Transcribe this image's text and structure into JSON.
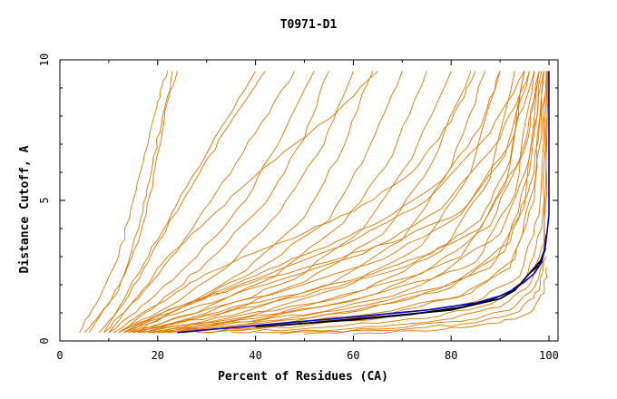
{
  "chart_data": {
    "type": "line",
    "title": "T0971-D1",
    "xlabel": "Percent of Residues (CA)",
    "ylabel": "Distance Cutoff, A",
    "xlim": [
      0,
      100
    ],
    "ylim": [
      0,
      10
    ],
    "xticks": [
      "0",
      "20",
      "40",
      "60",
      "80",
      "100"
    ],
    "yticks": [
      "0",
      "5",
      "10"
    ],
    "grid": false,
    "colors": {
      "models": "#e07800",
      "reference": "#000000",
      "highlight": "#0000cc"
    },
    "series": [
      {
        "role": "highlight",
        "color": "#0000cc",
        "x": [
          24,
          40,
          60,
          75,
          85,
          90,
          93,
          95,
          97,
          98.5,
          99.3,
          99.7,
          100,
          100,
          100
        ],
        "y": [
          0.3,
          0.55,
          0.85,
          1.1,
          1.35,
          1.6,
          1.85,
          2.1,
          2.4,
          2.8,
          3.4,
          4.0,
          4.5,
          7.0,
          9.6
        ]
      },
      {
        "role": "reference",
        "color": "#000000",
        "x": [
          40,
          60,
          72,
          82,
          88,
          92,
          94,
          96,
          98,
          99,
          99.5
        ],
        "y": [
          0.5,
          0.75,
          0.95,
          1.2,
          1.45,
          1.75,
          2.0,
          2.4,
          2.7,
          3.2,
          3.8
        ]
      },
      {
        "role": "reference",
        "color": "#000000",
        "x": [
          45,
          65,
          80,
          90,
          93,
          95,
          97,
          98.5,
          99.3
        ],
        "y": [
          0.55,
          0.85,
          1.1,
          1.5,
          1.8,
          2.2,
          2.6,
          2.9,
          3.3
        ]
      },
      {
        "role": "model",
        "x": [
          4,
          8,
          12,
          15,
          18,
          20,
          22
        ],
        "y": [
          0.3,
          1.5,
          3.0,
          5.0,
          7.0,
          8.5,
          9.6
        ]
      },
      {
        "role": "model",
        "x": [
          5,
          10,
          14,
          17,
          19,
          21,
          24
        ],
        "y": [
          0.3,
          1.3,
          2.8,
          4.6,
          6.3,
          8.0,
          9.6
        ]
      },
      {
        "role": "model",
        "x": [
          6,
          12,
          16,
          19,
          21,
          23
        ],
        "y": [
          0.3,
          1.8,
          3.5,
          5.5,
          7.5,
          9.6
        ]
      },
      {
        "role": "model",
        "x": [
          8,
          14,
          20,
          28,
          35,
          42
        ],
        "y": [
          0.3,
          1.6,
          3.5,
          5.8,
          7.8,
          9.6
        ]
      },
      {
        "role": "model",
        "x": [
          9,
          16,
          24,
          32,
          40,
          48
        ],
        "y": [
          0.3,
          1.5,
          3.2,
          5.3,
          7.4,
          9.6
        ]
      },
      {
        "role": "model",
        "x": [
          10,
          18,
          28,
          38,
          46,
          52
        ],
        "y": [
          0.3,
          1.4,
          3.0,
          5.0,
          7.5,
          9.6
        ]
      },
      {
        "role": "model",
        "x": [
          11,
          20,
          30,
          42,
          50,
          55
        ],
        "y": [
          0.3,
          1.3,
          2.8,
          4.9,
          7.2,
          9.6
        ]
      },
      {
        "role": "model",
        "x": [
          12,
          22,
          34,
          45,
          54,
          60
        ],
        "y": [
          0.3,
          1.2,
          2.6,
          4.6,
          7.0,
          9.6
        ]
      },
      {
        "role": "model",
        "x": [
          13,
          24,
          38,
          50,
          58,
          64
        ],
        "y": [
          0.3,
          1.1,
          2.5,
          4.4,
          6.9,
          9.6
        ]
      },
      {
        "role": "model",
        "x": [
          12,
          25,
          40,
          55,
          63,
          70
        ],
        "y": [
          0.3,
          1.2,
          2.5,
          4.3,
          6.8,
          9.6
        ]
      },
      {
        "role": "model",
        "x": [
          14,
          28,
          44,
          58,
          68,
          75
        ],
        "y": [
          0.3,
          1.0,
          2.3,
          4.2,
          6.6,
          9.6
        ]
      },
      {
        "role": "model",
        "x": [
          15,
          30,
          48,
          62,
          72,
          80
        ],
        "y": [
          0.3,
          1.0,
          2.2,
          4.0,
          6.5,
          9.6
        ]
      },
      {
        "role": "model",
        "x": [
          16,
          32,
          50,
          66,
          76,
          84
        ],
        "y": [
          0.3,
          0.9,
          2.1,
          3.8,
          6.3,
          9.6
        ]
      },
      {
        "role": "model",
        "x": [
          17,
          35,
          55,
          70,
          80,
          87
        ],
        "y": [
          0.3,
          0.9,
          2.0,
          3.6,
          6.2,
          9.6
        ]
      },
      {
        "role": "model",
        "x": [
          18,
          38,
          58,
          74,
          84,
          90
        ],
        "y": [
          0.3,
          0.85,
          1.9,
          3.4,
          6.0,
          9.6
        ]
      },
      {
        "role": "model",
        "x": [
          19,
          40,
          62,
          78,
          88,
          93
        ],
        "y": [
          0.3,
          0.8,
          1.8,
          3.2,
          5.8,
          9.6
        ]
      },
      {
        "role": "model",
        "x": [
          20,
          42,
          65,
          82,
          91,
          95
        ],
        "y": [
          0.3,
          0.8,
          1.7,
          3.0,
          5.5,
          9.6
        ]
      },
      {
        "role": "model",
        "x": [
          21,
          45,
          68,
          85,
          93,
          97
        ],
        "y": [
          0.3,
          0.75,
          1.6,
          2.8,
          5.2,
          9.6
        ]
      },
      {
        "role": "model",
        "x": [
          22,
          48,
          72,
          88,
          95,
          98
        ],
        "y": [
          0.3,
          0.7,
          1.5,
          2.6,
          4.8,
          9.6
        ]
      },
      {
        "role": "model",
        "x": [
          20,
          40,
          60,
          80,
          92,
          97,
          99
        ],
        "y": [
          0.3,
          0.7,
          1.2,
          2.0,
          3.5,
          6.0,
          9.6
        ]
      },
      {
        "role": "model",
        "x": [
          18,
          36,
          56,
          76,
          90,
          96,
          99
        ],
        "y": [
          0.3,
          0.75,
          1.3,
          2.2,
          3.8,
          6.5,
          9.6
        ]
      },
      {
        "role": "model",
        "x": [
          15,
          30,
          50,
          70,
          86,
          95,
          98
        ],
        "y": [
          0.3,
          0.9,
          1.6,
          2.6,
          4.0,
          6.8,
          9.6
        ]
      },
      {
        "role": "model",
        "x": [
          14,
          28,
          46,
          66,
          82,
          92,
          97
        ],
        "y": [
          0.3,
          1.0,
          1.8,
          2.9,
          4.5,
          7.0,
          9.6
        ]
      },
      {
        "role": "model",
        "x": [
          13,
          26,
          42,
          62,
          78,
          90,
          96
        ],
        "y": [
          0.3,
          1.1,
          2.0,
          3.1,
          4.7,
          7.2,
          9.6
        ]
      },
      {
        "role": "model",
        "x": [
          12,
          24,
          40,
          58,
          75,
          88,
          95
        ],
        "y": [
          0.3,
          1.2,
          2.2,
          3.4,
          5.0,
          7.4,
          9.6
        ]
      },
      {
        "role": "model",
        "x": [
          25,
          45,
          65,
          82,
          92,
          97,
          99.5
        ],
        "y": [
          0.3,
          0.6,
          1.0,
          1.6,
          2.6,
          5.0,
          9.6
        ]
      },
      {
        "role": "model",
        "x": [
          30,
          50,
          70,
          85,
          94,
          98,
          99.5
        ],
        "y": [
          0.3,
          0.55,
          0.9,
          1.4,
          2.3,
          4.5,
          9.6
        ]
      },
      {
        "role": "model",
        "x": [
          35,
          55,
          75,
          88,
          95,
          98.5,
          99.6
        ],
        "y": [
          0.3,
          0.5,
          0.8,
          1.3,
          2.1,
          4.0,
          9.6
        ]
      },
      {
        "role": "model",
        "x": [
          40,
          60,
          78,
          90,
          96,
          99,
          99.7
        ],
        "y": [
          0.3,
          0.45,
          0.75,
          1.2,
          2.0,
          3.5,
          9.6
        ]
      },
      {
        "role": "model",
        "x": [
          45,
          65,
          82,
          92,
          97,
          99.2,
          99.8
        ],
        "y": [
          0.25,
          0.42,
          0.7,
          1.1,
          1.9,
          3.2,
          9.6
        ]
      },
      {
        "role": "model",
        "x": [
          50,
          70,
          85,
          94,
          98,
          99.4
        ],
        "y": [
          0.25,
          0.4,
          0.65,
          1.05,
          1.8,
          3.0
        ]
      },
      {
        "role": "model",
        "x": [
          28,
          48,
          68,
          84,
          93,
          97,
          99
        ],
        "y": [
          0.3,
          0.6,
          1.0,
          1.7,
          2.9,
          5.5,
          9.6
        ]
      },
      {
        "role": "model",
        "x": [
          22,
          42,
          62,
          80,
          91,
          96,
          98.5
        ],
        "y": [
          0.3,
          0.65,
          1.1,
          1.9,
          3.2,
          6.0,
          9.6
        ]
      },
      {
        "role": "model",
        "x": [
          16,
          34,
          54,
          74,
          88,
          95,
          98
        ],
        "y": [
          0.3,
          0.8,
          1.4,
          2.4,
          4.1,
          7.0,
          9.6
        ]
      },
      {
        "role": "model",
        "x": [
          60,
          78,
          90,
          96,
          99,
          99.6
        ],
        "y": [
          0.25,
          0.4,
          0.65,
          1.0,
          1.7,
          2.6
        ]
      },
      {
        "role": "model",
        "x": [
          12,
          20,
          30,
          45,
          60,
          72,
          80,
          85
        ],
        "y": [
          0.3,
          1.3,
          2.4,
          3.5,
          4.6,
          6.0,
          7.8,
          9.6
        ]
      },
      {
        "role": "model",
        "x": [
          15,
          25,
          38,
          52,
          66,
          78,
          86,
          90
        ],
        "y": [
          0.3,
          1.2,
          2.2,
          3.2,
          4.3,
          5.7,
          7.6,
          9.6
        ]
      },
      {
        "role": "model",
        "x": [
          10,
          16,
          22,
          32,
          42,
          55,
          65
        ],
        "y": [
          0.3,
          1.6,
          3.0,
          4.6,
          6.2,
          7.9,
          9.6
        ]
      },
      {
        "role": "model",
        "x": [
          13,
          22,
          36,
          52,
          68,
          82,
          91,
          96
        ],
        "y": [
          0.3,
          1.1,
          1.9,
          2.7,
          3.5,
          4.6,
          6.6,
          9.6
        ]
      },
      {
        "role": "model",
        "x": [
          17,
          30,
          46,
          62,
          76,
          86,
          92,
          95
        ],
        "y": [
          0.3,
          0.95,
          1.6,
          2.3,
          3.1,
          4.3,
          6.4,
          9.6
        ]
      },
      {
        "role": "model",
        "x": [
          9,
          14,
          20,
          26,
          33,
          40
        ],
        "y": [
          0.3,
          1.8,
          3.6,
          5.5,
          7.6,
          9.6
        ]
      }
    ]
  }
}
